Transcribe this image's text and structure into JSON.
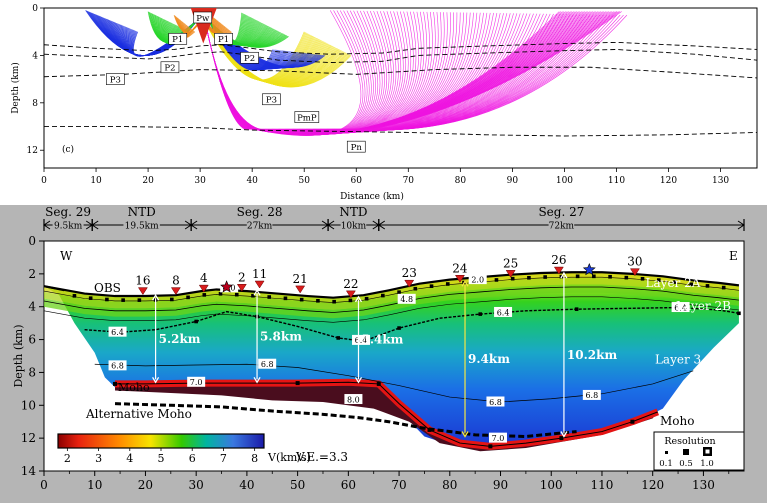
{
  "chart_data": [
    {
      "type": "ray-diagram",
      "panel_label": "(c)",
      "xlabel": "Distance (km)",
      "ylabel": "Depth (km)",
      "xlim": [
        0,
        137
      ],
      "ylim": [
        0,
        13.5
      ],
      "xticks": [
        0,
        10,
        20,
        30,
        40,
        50,
        60,
        70,
        80,
        90,
        100,
        110,
        120,
        130
      ],
      "yticks": [
        0,
        4,
        8,
        12
      ],
      "phase_colors": {
        "Pw": "#d92b1e",
        "P1": "#f08a1c",
        "P2": "#27d52a",
        "P3": "#1b2fe0",
        "PmP": "#f0e21a",
        "Pn": "#ee14e0"
      },
      "phase_labels": [
        {
          "text": "Pw",
          "x": 30.5,
          "y": 0.8
        },
        {
          "text": "P1",
          "x": 25.7,
          "y": 2.6
        },
        {
          "text": "P1",
          "x": 34.5,
          "y": 2.6
        },
        {
          "text": "P2",
          "x": 24.2,
          "y": 5.0
        },
        {
          "text": "P2",
          "x": 39.5,
          "y": 4.2
        },
        {
          "text": "P3",
          "x": 13.7,
          "y": 6.0
        },
        {
          "text": "P3",
          "x": 43.7,
          "y": 7.7
        },
        {
          "text": "PmP",
          "x": 50.5,
          "y": 9.2
        },
        {
          "text": "Pn",
          "x": 60.0,
          "y": 11.7
        }
      ],
      "boundaries": [
        {
          "x": [
            0,
            10,
            20,
            25,
            30,
            34,
            38,
            45,
            55,
            65,
            72,
            85,
            100,
            110,
            125,
            137
          ],
          "y": [
            3.1,
            3.4,
            3.6,
            3.5,
            3.2,
            3.1,
            3.3,
            3.7,
            3.9,
            3.8,
            3.4,
            3.2,
            3.0,
            2.9,
            3.2,
            3.5
          ]
        },
        {
          "x": [
            0,
            10,
            20,
            25,
            30,
            34,
            38,
            45,
            55,
            65,
            72,
            85,
            100,
            110,
            125,
            137
          ],
          "y": [
            3.9,
            4.1,
            4.3,
            4.1,
            3.8,
            3.7,
            3.9,
            4.4,
            4.6,
            4.5,
            4.0,
            3.8,
            3.6,
            3.5,
            3.9,
            4.4
          ]
        },
        {
          "x": [
            0,
            15,
            30,
            45,
            60,
            75,
            90,
            105,
            120,
            137
          ],
          "y": [
            5.8,
            5.6,
            5.2,
            5.3,
            5.6,
            5.2,
            5.0,
            5.0,
            5.4,
            5.9
          ]
        },
        {
          "x": [
            0,
            15,
            30,
            40,
            55,
            70,
            85,
            100,
            120,
            137
          ],
          "y": [
            10.0,
            10.0,
            10.1,
            10.3,
            10.4,
            10.5,
            10.7,
            10.8,
            10.7,
            10.5
          ]
        }
      ]
    },
    {
      "type": "velocity-model",
      "direction_left": "W",
      "direction_right": "E",
      "xlabel": "",
      "ylabel": "Depth (km)",
      "xlim": [
        0,
        138
      ],
      "ylim": [
        0,
        14
      ],
      "xticks": [
        0,
        10,
        20,
        30,
        40,
        50,
        60,
        70,
        80,
        90,
        100,
        110,
        120,
        130
      ],
      "yticks": [
        0,
        2,
        4,
        6,
        8,
        10,
        12,
        14
      ],
      "segments": [
        {
          "name": "Seg. 29",
          "length_label": "9.5km",
          "x0": 0,
          "x1": 9.5
        },
        {
          "name": "NTD",
          "length_label": "19.5km",
          "x0": 9.5,
          "x1": 29
        },
        {
          "name": "Seg. 28",
          "length_label": "27km",
          "x0": 29,
          "x1": 56
        },
        {
          "name": "NTD",
          "length_label": "10km",
          "x0": 56,
          "x1": 66
        },
        {
          "name": "Seg. 27",
          "length_label": "72km",
          "x0": 66,
          "x1": 138
        }
      ],
      "seafloor": {
        "x": [
          0,
          8,
          14,
          20,
          26,
          31,
          34,
          40,
          46,
          52,
          57,
          63,
          68,
          74,
          80,
          86,
          92,
          98,
          104,
          110,
          116,
          122,
          128,
          133,
          137
        ],
        "y": [
          2.75,
          3.2,
          3.35,
          3.35,
          3.3,
          3.05,
          2.95,
          3.05,
          3.2,
          3.35,
          3.45,
          3.3,
          3.0,
          2.6,
          2.35,
          2.2,
          2.05,
          1.95,
          1.9,
          1.9,
          2.0,
          2.15,
          2.4,
          2.55,
          2.7
        ]
      },
      "moho": {
        "x": [
          14,
          20,
          30,
          40,
          50,
          60,
          66,
          70,
          76,
          82,
          88,
          95,
          102,
          110,
          116,
          121
        ],
        "y": [
          8.7,
          8.7,
          8.65,
          8.65,
          8.65,
          8.6,
          8.7,
          9.9,
          11.5,
          12.3,
          12.5,
          12.3,
          12.0,
          11.6,
          11.0,
          10.4
        ]
      },
      "alternative_moho": {
        "x": [
          14,
          25,
          35,
          45,
          55,
          62,
          68,
          75,
          85,
          95,
          105
        ],
        "y": [
          9.9,
          10.0,
          10.1,
          10.35,
          10.55,
          10.75,
          11.0,
          11.4,
          11.8,
          11.9,
          11.6
        ]
      },
      "contours": [
        {
          "label": "2.0",
          "label_x": 85.5,
          "label_y": 2.35,
          "points_y": [
            2.3
          ]
        },
        {
          "label": "4.0",
          "label_x": 36.5,
          "label_y": 2.85
        },
        {
          "label": "4.8",
          "label_x": 71.5,
          "label_y": 3.55
        },
        {
          "label": "6.4",
          "label_x": 14.5,
          "label_y": 5.55
        },
        {
          "label": "6.4",
          "label_x": 62.5,
          "label_y": 6.05
        },
        {
          "label": "6.4",
          "label_x": 90.5,
          "label_y": 4.35
        },
        {
          "label": "6.4",
          "label_x": 125.5,
          "label_y": 4.05
        },
        {
          "label": "6.8",
          "label_x": 14.5,
          "label_y": 7.6
        },
        {
          "label": "6.8",
          "label_x": 44.0,
          "label_y": 7.5
        },
        {
          "label": "6.8",
          "label_x": 89.0,
          "label_y": 9.8
        },
        {
          "label": "6.8",
          "label_x": 108.0,
          "label_y": 9.4
        },
        {
          "label": "7.0",
          "label_x": 30.0,
          "label_y": 8.6
        },
        {
          "label": "7.0",
          "label_x": 89.5,
          "label_y": 12.0
        },
        {
          "label": "8.0",
          "label_x": 61.0,
          "label_y": 9.65
        }
      ],
      "obs": [
        {
          "label": "16",
          "x": 19.5,
          "y": 3.2
        },
        {
          "label": "8",
          "x": 26.0,
          "y": 3.2
        },
        {
          "label": "4",
          "x": 31.5,
          "y": 3.05
        },
        {
          "label": "2",
          "x": 39.0,
          "y": 3.0
        },
        {
          "label": "11",
          "x": 42.5,
          "y": 2.8
        },
        {
          "label": "21",
          "x": 50.5,
          "y": 3.1
        },
        {
          "label": "22",
          "x": 60.5,
          "y": 3.4
        },
        {
          "label": "23",
          "x": 72.0,
          "y": 2.75
        },
        {
          "label": "24",
          "x": 82.0,
          "y": 2.45
        },
        {
          "label": "25",
          "x": 92.0,
          "y": 2.15
        },
        {
          "label": "26",
          "x": 101.5,
          "y": 1.95
        },
        {
          "label": "30",
          "x": 116.5,
          "y": 2.05
        }
      ],
      "obs_label": "OBS",
      "stars": [
        {
          "x": 36.0,
          "y": 2.8
        },
        {
          "x": 107.5,
          "y": 1.75
        }
      ],
      "thickness_markers": [
        {
          "label": "5.2km",
          "x": 22.0,
          "y0": 3.3,
          "y1": 8.6,
          "color": "#ffffff"
        },
        {
          "label": "5.8km",
          "x": 42.0,
          "y0": 3.0,
          "y1": 8.6,
          "color": "#ffffff"
        },
        {
          "label": "5.4km",
          "x": 62.0,
          "y0": 3.4,
          "y1": 8.6,
          "color": "#ffffff"
        },
        {
          "label": "9.4km",
          "x": 83.0,
          "y0": 2.45,
          "y1": 11.9,
          "color": "#f5e642"
        },
        {
          "label": "10.2km",
          "x": 102.5,
          "y0": 1.95,
          "y1": 11.9,
          "color": "#ffffff"
        }
      ],
      "layer_labels": [
        {
          "text": "Layer 2A",
          "x": 124.0,
          "y": 2.55
        },
        {
          "text": "Layer 2B",
          "x": 130.0,
          "y": 3.95
        },
        {
          "text": "Layer 3",
          "x": 125.0,
          "y": 7.2
        }
      ],
      "moho_label": "Moho",
      "alt_moho_label": "Alternative Moho",
      "moho_label_right": "Moho",
      "ve_label": "V.E.=3.3",
      "colorbar": {
        "title": "V(km/s)",
        "ticks": [
          2,
          3,
          4,
          5,
          6,
          7,
          8
        ],
        "range": [
          1.7,
          8.3
        ]
      },
      "resolution": {
        "title": "Resolution",
        "values": [
          "0.1",
          "0.5",
          "1.0"
        ]
      }
    }
  ]
}
